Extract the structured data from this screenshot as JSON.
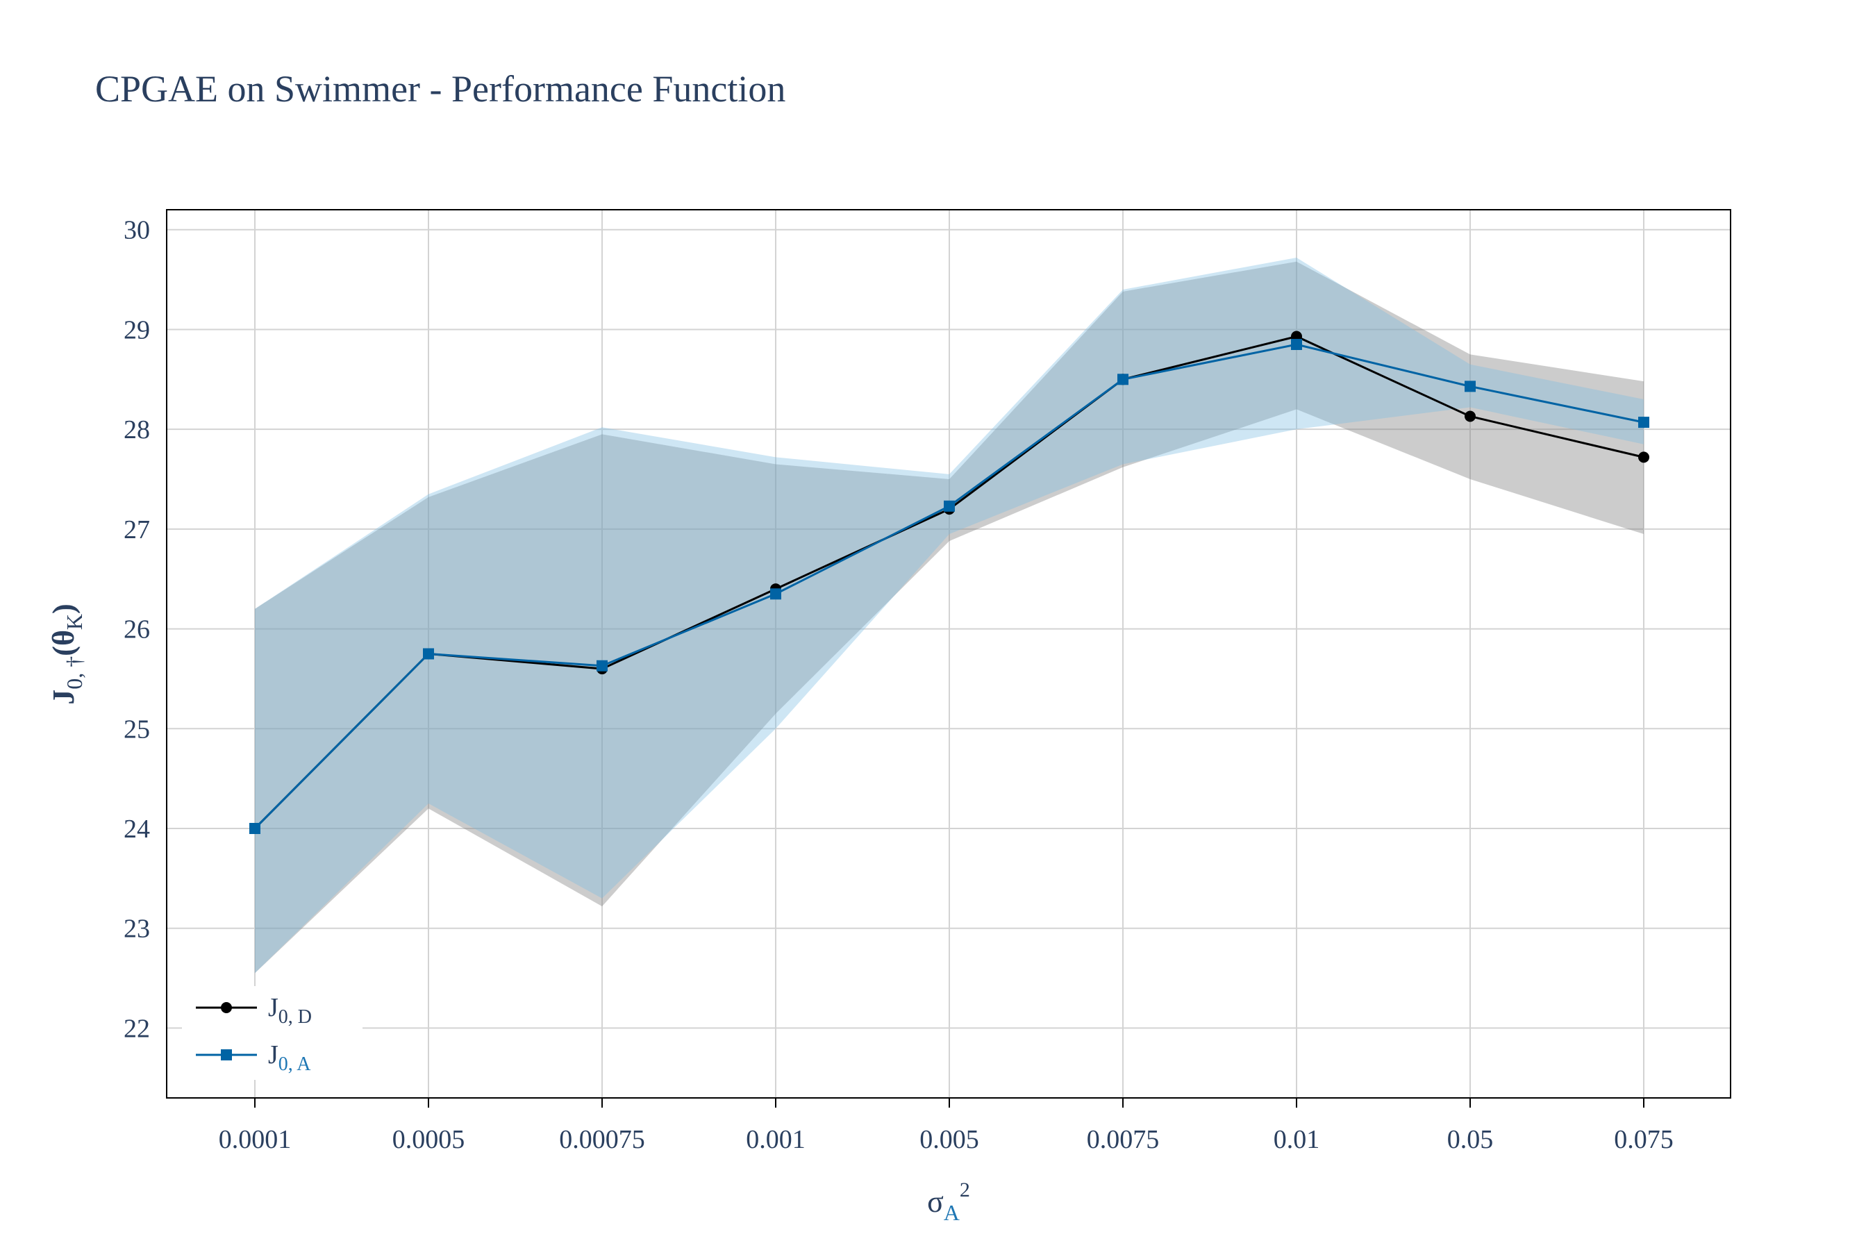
{
  "chart_data": {
    "type": "line",
    "title": "CPGAE on Swimmer - Performance Function",
    "xlabel": {
      "base": "σ",
      "sub": "A",
      "sup": "2"
    },
    "ylabel": {
      "base": "J",
      "sub1": "0, †",
      "paren_open": "(θ",
      "sub2": "K",
      "paren_close": ")"
    },
    "categories": [
      "0.0001",
      "0.0005",
      "0.00075",
      "0.001",
      "0.005",
      "0.0075",
      "0.01",
      "0.05",
      "0.075"
    ],
    "ylim": [
      21.3,
      30.2
    ],
    "yticks": [
      22,
      23,
      24,
      25,
      26,
      27,
      28,
      29,
      30
    ],
    "grid": true,
    "legend_position": "bottom-left",
    "series": [
      {
        "key": "D",
        "name": {
          "base": "J",
          "sub": "0, D"
        },
        "color": "#000000",
        "marker": "circle",
        "values": [
          24.0,
          25.75,
          25.6,
          26.4,
          27.2,
          28.5,
          28.93,
          28.13,
          27.72
        ],
        "band_upper": [
          26.2,
          27.32,
          27.95,
          27.65,
          27.5,
          29.38,
          29.68,
          28.75,
          28.48
        ],
        "band_lower": [
          22.55,
          24.2,
          23.22,
          25.15,
          26.88,
          27.62,
          28.2,
          27.5,
          26.95
        ],
        "band_color": "rgba(120,120,120,0.38)"
      },
      {
        "key": "A",
        "name": {
          "base": "J",
          "sub": "0, A"
        },
        "color": "#0063a4",
        "marker": "square",
        "values": [
          24.0,
          25.75,
          25.63,
          26.35,
          27.23,
          28.5,
          28.85,
          28.43,
          28.07
        ],
        "band_upper": [
          26.2,
          27.35,
          28.02,
          27.72,
          27.55,
          29.4,
          29.72,
          28.65,
          28.3
        ],
        "band_lower": [
          22.55,
          24.25,
          23.3,
          25.0,
          26.95,
          27.65,
          28.0,
          28.22,
          27.85
        ],
        "band_color": "rgba(125,190,225,0.38)"
      }
    ]
  }
}
